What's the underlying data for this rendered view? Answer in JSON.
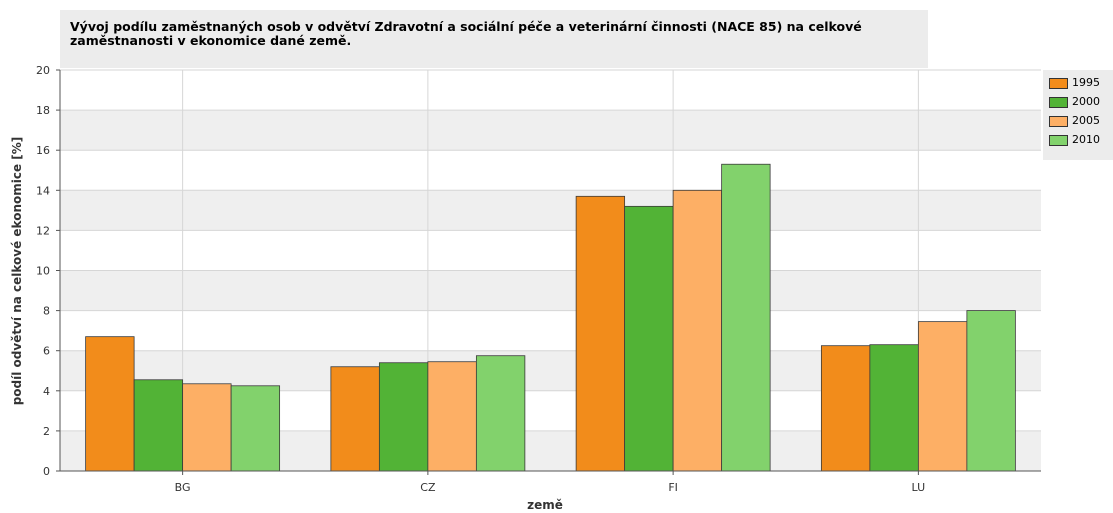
{
  "chart_data": {
    "type": "bar",
    "title": "Vývoj podílu zaměstnaných osob v odvětví Zdravotní a sociální péče a veterinární činnosti (NACE 85) na celkové zaměstnanosti v ekonomice dané země.",
    "title_lines": [
      "Vývoj podílu zaměstnaných osob v odvětví Zdravotní a sociální péče a veterinární činnosti (NACE 85) na celkové",
      "zaměstnanosti v ekonomice dané země."
    ],
    "xlabel": "země",
    "ylabel": "podíl odvětví na celkové ekonomice [%]",
    "categories": [
      "BG",
      "CZ",
      "FI",
      "LU"
    ],
    "ylim": [
      0,
      20
    ],
    "yticks": [
      0,
      2,
      4,
      6,
      8,
      10,
      12,
      14,
      16,
      18,
      20
    ],
    "grid": true,
    "legend_position": "right",
    "series": [
      {
        "name": "1995",
        "color": "#f28c1b",
        "values": [
          6.7,
          5.2,
          13.7,
          6.25
        ]
      },
      {
        "name": "2000",
        "color": "#52b336",
        "values": [
          4.55,
          5.4,
          13.2,
          6.3
        ]
      },
      {
        "name": "2005",
        "color": "#fdaf65",
        "values": [
          4.35,
          5.45,
          14.0,
          7.45
        ]
      },
      {
        "name": "2010",
        "color": "#82d26c",
        "values": [
          4.25,
          5.75,
          15.3,
          8.0
        ]
      }
    ]
  }
}
